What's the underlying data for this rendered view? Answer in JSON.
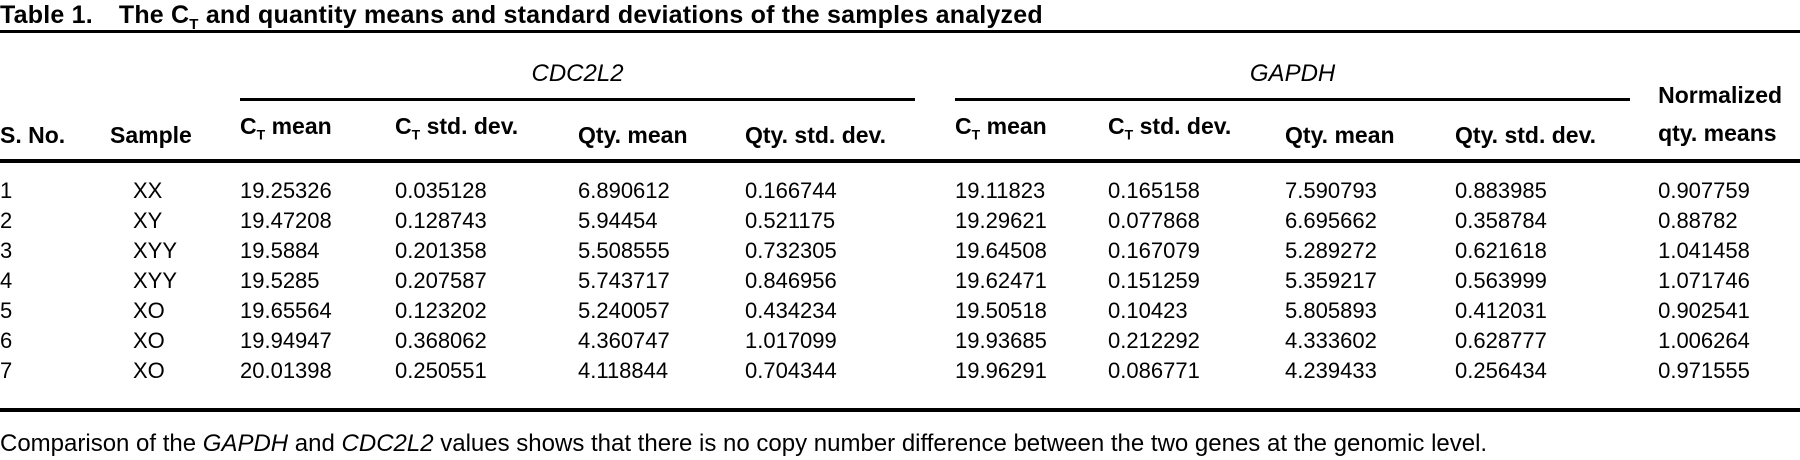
{
  "title": {
    "label": "Table 1.",
    "pre": "The C",
    "sub": "T",
    "post": " and quantity means and standard deviations of the samples analyzed"
  },
  "table": {
    "groups": [
      {
        "label": "CDC2L2"
      },
      {
        "label": "GAPDH"
      }
    ],
    "normalized_header": {
      "line1": "Normalized",
      "line2": "qty. means"
    },
    "columns": [
      {
        "text": "S. No."
      },
      {
        "text": "Sample"
      },
      {
        "pre": "C",
        "sub": "T",
        "post": " mean"
      },
      {
        "pre": "C",
        "sub": "T",
        "post": " std. dev."
      },
      {
        "text": "Qty. mean"
      },
      {
        "text": "Qty. std. dev."
      },
      {
        "pre": "C",
        "sub": "T",
        "post": " mean"
      },
      {
        "pre": "C",
        "sub": "T",
        "post": " std. dev."
      },
      {
        "text": "Qty. mean"
      },
      {
        "text": "Qty. std. dev."
      }
    ],
    "rows": [
      [
        "1",
        "XX",
        "19.25326",
        "0.035128",
        "6.890612",
        "0.166744",
        "19.11823",
        "0.165158",
        "7.590793",
        "0.883985",
        "0.907759"
      ],
      [
        "2",
        "XY",
        "19.47208",
        "0.128743",
        "5.94454",
        "0.521175",
        "19.29621",
        "0.077868",
        "6.695662",
        "0.358784",
        "0.88782"
      ],
      [
        "3",
        "XYY",
        "19.5884",
        "0.201358",
        "5.508555",
        "0.732305",
        "19.64508",
        "0.167079",
        "5.289272",
        "0.621618",
        "1.041458"
      ],
      [
        "4",
        "XYY",
        "19.5285",
        "0.207587",
        "5.743717",
        "0.846956",
        "19.62471",
        "0.151259",
        "5.359217",
        "0.563999",
        "1.071746"
      ],
      [
        "5",
        "XO",
        "19.65564",
        "0.123202",
        "5.240057",
        "0.434234",
        "19.50518",
        "0.10423",
        "5.805893",
        "0.412031",
        "0.902541"
      ],
      [
        "6",
        "XO",
        "19.94947",
        "0.368062",
        "4.360747",
        "1.017099",
        "19.93685",
        "0.212292",
        "4.333602",
        "0.628777",
        "1.006264"
      ],
      [
        "7",
        "XO",
        "20.01398",
        "0.250551",
        "4.118844",
        "0.704344",
        "19.96291",
        "0.086771",
        "4.239433",
        "0.256434",
        "0.971555"
      ]
    ]
  },
  "footnote": {
    "parts": [
      {
        "text": "Comparison of the "
      },
      {
        "text": "GAPDH",
        "italic": true
      },
      {
        "text": " and "
      },
      {
        "text": "CDC2L2",
        "italic": true
      },
      {
        "text": " values shows that there is no copy number difference between the two genes at the genomic level."
      }
    ]
  },
  "colors": {
    "text": "#000000",
    "rule": "#000000",
    "background": "#ffffff"
  }
}
